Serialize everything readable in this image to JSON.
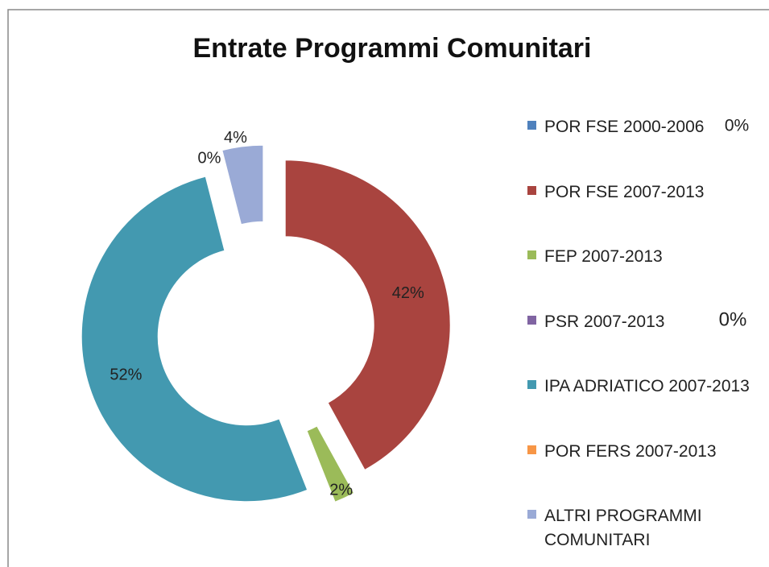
{
  "chart_data": {
    "type": "donut",
    "title": "Entrate Programmi Comunitari",
    "categories": [
      "POR FSE 2000-2006",
      "POR FSE 2007-2013",
      "FEP 2007-2013",
      "PSR 2007-2013",
      "IPA ADRIATICO 2007-2013",
      "POR FERS 2007-2013",
      "ALTRI PROGRAMMI COMUNITARI"
    ],
    "values": [
      0,
      42,
      2,
      0,
      52,
      0,
      4
    ],
    "value_labels": [
      "0%",
      "42%",
      "2%",
      "0%",
      "52%",
      "0%",
      "4%"
    ],
    "colors": [
      "#4f81bd",
      "#a9443f",
      "#9bbb59",
      "#8064a2",
      "#4399b0",
      "#f79646",
      "#9aaad6"
    ],
    "legend": "right"
  }
}
